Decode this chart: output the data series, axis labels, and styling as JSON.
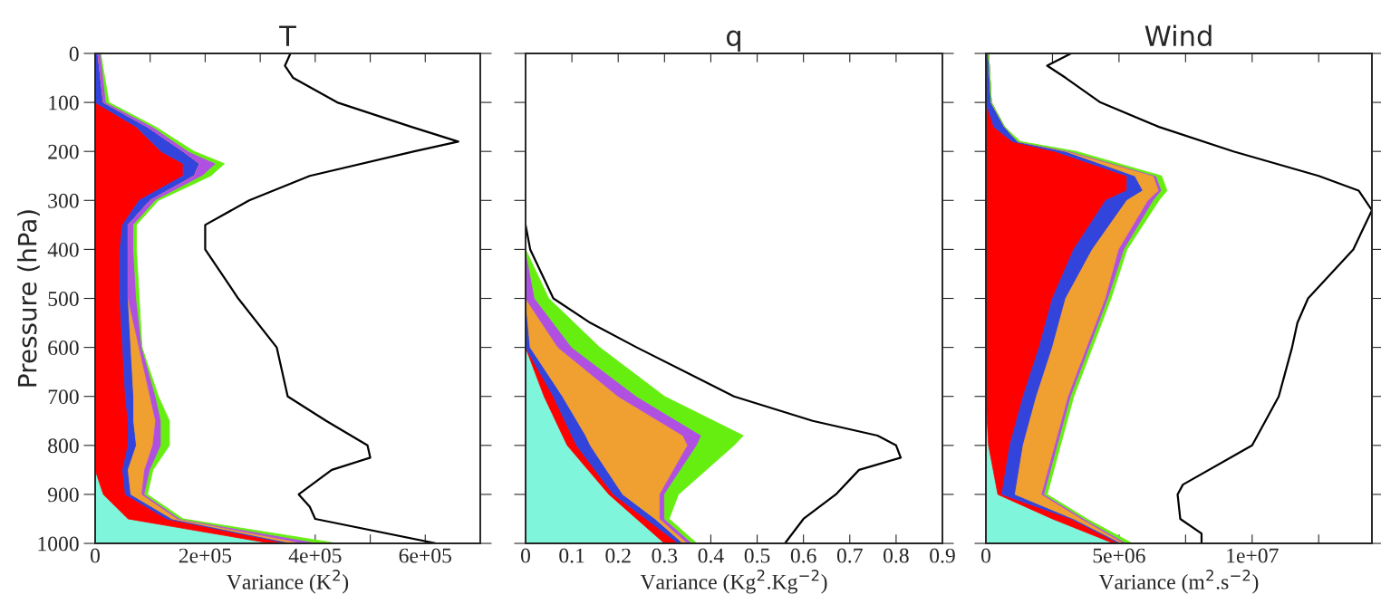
{
  "chart_data": [
    {
      "type": "area",
      "title": "T",
      "xlabel": "Variance (K$^{2}$)",
      "ylabel": "Pressure (hPa)",
      "orientation": "horizontal",
      "stacked": true,
      "x": [
        0,
        100,
        150,
        200,
        225,
        250,
        300,
        350,
        400,
        500,
        600,
        700,
        750,
        800,
        850,
        900,
        950,
        1000
      ],
      "series": [
        {
          "color": "#7ff5dc",
          "values": [
            0,
            0,
            0,
            0,
            0,
            0,
            0,
            0,
            0,
            0,
            0,
            0,
            0,
            0,
            0,
            15000,
            60000,
            320000
          ]
        },
        {
          "color": "#ff0000",
          "values": [
            0,
            0,
            75000,
            120000,
            160000,
            160000,
            80000,
            50000,
            45000,
            45000,
            50000,
            55000,
            60000,
            60000,
            50000,
            40000,
            70000,
            30000
          ]
        },
        {
          "color": "#3344dd",
          "values": [
            5000,
            15000,
            20000,
            40000,
            30000,
            20000,
            20000,
            10000,
            15000,
            15000,
            15000,
            15000,
            10000,
            15000,
            10000,
            10000,
            10000,
            10000
          ]
        },
        {
          "color": "#f0a030",
          "values": [
            0,
            0,
            0,
            0,
            0,
            0,
            0,
            0,
            0,
            0,
            15000,
            30000,
            40000,
            30000,
            30000,
            20000,
            10000,
            20000
          ]
        },
        {
          "color": "#b050e0",
          "values": [
            5000,
            5000,
            10000,
            10000,
            30000,
            15000,
            10000,
            10000,
            10000,
            15000,
            5000,
            10000,
            10000,
            15000,
            10000,
            5000,
            5000,
            30000
          ]
        },
        {
          "color": "#66ee11",
          "values": [
            0,
            5000,
            5000,
            10000,
            15000,
            15000,
            5000,
            5000,
            5000,
            5000,
            0,
            5000,
            15000,
            15000,
            5000,
            5000,
            5000,
            30000
          ]
        },
        {
          "type": "line",
          "color": "#000000",
          "x": [
            0,
            25,
            50,
            100,
            150,
            180,
            200,
            250,
            300,
            350,
            400,
            500,
            600,
            700,
            750,
            800,
            825,
            850,
            900,
            925,
            950,
            1000
          ],
          "values": [
            355000,
            345000,
            360000,
            440000,
            575000,
            660000,
            580000,
            390000,
            280000,
            200000,
            200000,
            260000,
            330000,
            350000,
            420000,
            495000,
            500000,
            430000,
            370000,
            390000,
            400000,
            620000
          ]
        }
      ],
      "xlim": [
        0,
        700000
      ],
      "xticks": [
        0,
        {
          "value": 100000,
          "label": null
        },
        {
          "value": 200000,
          "label": "2e+05"
        },
        {
          "value": 300000,
          "label": null
        },
        {
          "value": 400000,
          "label": "4e+05"
        },
        {
          "value": 500000,
          "label": null
        },
        {
          "value": 600000,
          "label": "6e+05"
        }
      ],
      "ylim": [
        1000,
        0
      ],
      "yticks": [
        0,
        100,
        200,
        300,
        400,
        500,
        600,
        700,
        800,
        900,
        1000
      ]
    },
    {
      "type": "area",
      "title": "q",
      "xlabel": "Variance (Kg$^{2}$.Kg$^{−2}$)",
      "orientation": "horizontal",
      "stacked": true,
      "tick_labels": "x",
      "x": [
        400,
        500,
        600,
        700,
        780,
        800,
        900,
        950,
        1000
      ],
      "series": [
        {
          "color": "#7ff5dc",
          "values": [
            0,
            0,
            0,
            0.04,
            0.08,
            0.09,
            0.18,
            0.24,
            0.3
          ]
        },
        {
          "color": "#ff0000",
          "values": [
            0,
            0,
            0,
            0.02,
            0.02,
            0.02,
            0.01,
            0.02,
            0.03
          ]
        },
        {
          "color": "#3344dd",
          "values": [
            0,
            0,
            0.01,
            0.02,
            0.03,
            0.03,
            0.02,
            0.02,
            0.01
          ]
        },
        {
          "color": "#f0a030",
          "values": [
            0,
            0,
            0.06,
            0.12,
            0.21,
            0.21,
            0.08,
            0.01,
            0.01
          ]
        },
        {
          "color": "#b050e0",
          "values": [
            0,
            0.02,
            0.03,
            0.04,
            0.04,
            0.02,
            0.01,
            0.01,
            0.01
          ]
        },
        {
          "color": "#66ee11",
          "values": [
            0,
            0.03,
            0.06,
            0.06,
            0.09,
            0.08,
            0.03,
            0.01,
            0.01
          ]
        },
        {
          "type": "line",
          "color": "#000000",
          "x": [
            350,
            400,
            500,
            550,
            600,
            700,
            750,
            780,
            800,
            825,
            850,
            900,
            950,
            1000
          ],
          "values": [
            0,
            0.01,
            0.06,
            0.14,
            0.24,
            0.45,
            0.62,
            0.76,
            0.8,
            0.81,
            0.72,
            0.67,
            0.6,
            0.56
          ]
        }
      ],
      "xlim": [
        0,
        0.9
      ],
      "xticks": [
        0,
        0.1,
        0.2,
        0.3,
        0.4,
        0.5,
        0.6,
        0.7,
        0.8,
        0.9
      ],
      "ylim": [
        1000,
        0
      ],
      "yticks": [
        0,
        100,
        200,
        300,
        400,
        500,
        600,
        700,
        800,
        900,
        1000
      ]
    },
    {
      "type": "area",
      "title": "Wind",
      "xlabel": "Variance (m$^{2}$.s$^{−2}$)",
      "orientation": "horizontal",
      "stacked": true,
      "tick_labels": "x",
      "x": [
        0,
        100,
        150,
        180,
        200,
        250,
        280,
        300,
        400,
        500,
        600,
        700,
        800,
        900,
        950,
        1000
      ],
      "series": [
        {
          "color": "#7ff5dc",
          "values": [
            0,
            0,
            0,
            0,
            0,
            0,
            0,
            0,
            0,
            0,
            0,
            0,
            100000,
            450000,
            2500000,
            4800000
          ]
        },
        {
          "color": "#ff0000",
          "values": [
            0,
            0,
            300000,
            1000000,
            2600000,
            5300000,
            5300000,
            4500000,
            3300000,
            2500000,
            2000000,
            1400000,
            800000,
            150000,
            700000,
            200000
          ]
        },
        {
          "color": "#3344dd",
          "values": [
            100000,
            200000,
            400000,
            200000,
            400000,
            300000,
            600000,
            800000,
            700000,
            500000,
            500000,
            500000,
            500000,
            500000,
            100000,
            100000
          ]
        },
        {
          "color": "#f0a030",
          "values": [
            0,
            0,
            0,
            0,
            100000,
            700000,
            600000,
            800000,
            1000000,
            1500000,
            1300000,
            1200000,
            1200000,
            1000000,
            300000,
            100000
          ]
        },
        {
          "color": "#b050e0",
          "values": [
            0,
            0,
            0,
            0,
            100000,
            100000,
            100000,
            200000,
            200000,
            100000,
            100000,
            100000,
            100000,
            100000,
            100000,
            100000
          ]
        },
        {
          "color": "#66ee11",
          "values": [
            0,
            0,
            0,
            100000,
            200000,
            200000,
            200000,
            200000,
            100000,
            100000,
            100000,
            100000,
            100000,
            100000,
            100000,
            200000
          ]
        },
        {
          "type": "line",
          "color": "#000000",
          "x": [
            0,
            25,
            50,
            100,
            150,
            200,
            250,
            280,
            320,
            400,
            500,
            550,
            600,
            700,
            800,
            880,
            900,
            950,
            980,
            1000
          ],
          "values": [
            3200000,
            2300000,
            3000000,
            4300000,
            6500000,
            9300000,
            12500000,
            14000000,
            14500000,
            13800000,
            12100000,
            11700000,
            11500000,
            11000000,
            10000000,
            7400000,
            7200000,
            7300000,
            8100000,
            8100000
          ]
        }
      ],
      "xlim": [
        0,
        14500000
      ],
      "xticks": [
        0,
        {
          "value": 2500000,
          "label": null
        },
        {
          "value": 5000000,
          "label": "5e+06"
        },
        {
          "value": 7500000,
          "label": null
        },
        {
          "value": 10000000,
          "label": "1e+07"
        },
        {
          "value": 12500000,
          "label": null
        }
      ],
      "ylim": [
        1000,
        0
      ],
      "yticks": [
        0,
        100,
        200,
        300,
        400,
        500,
        600,
        700,
        800,
        900,
        1000
      ]
    }
  ]
}
